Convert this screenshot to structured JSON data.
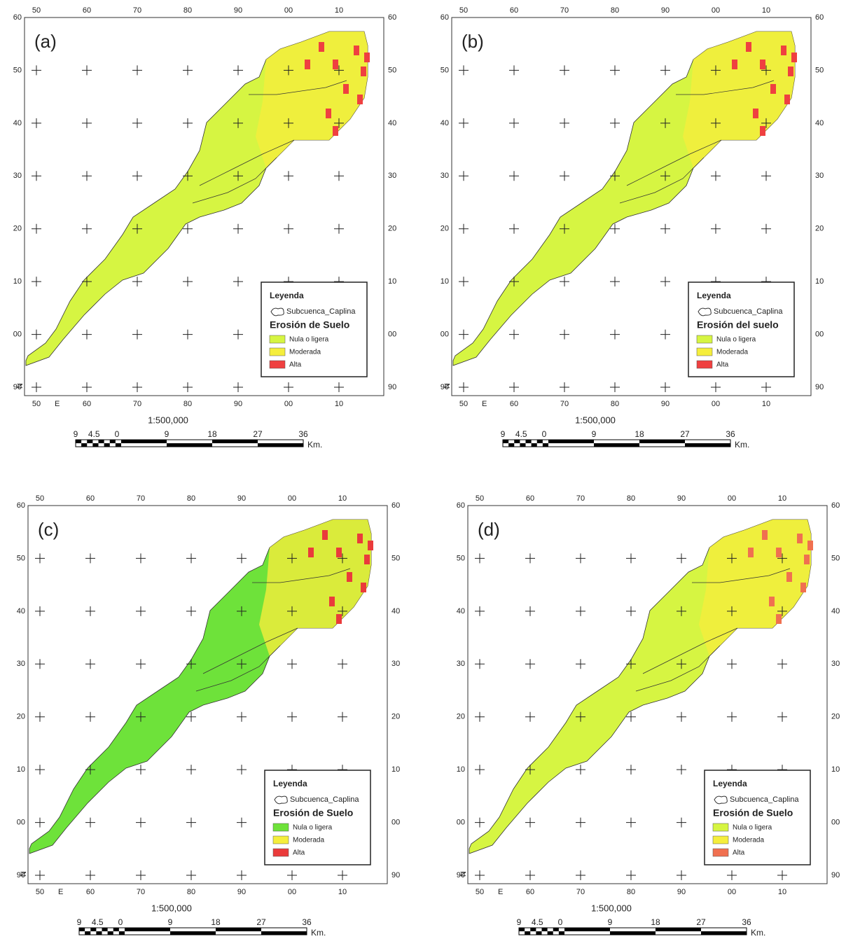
{
  "panels": [
    {
      "label": "(a)",
      "legend": {
        "title": "Leyenda",
        "boundary": "Subcuenca_Caplina",
        "heading": "Erosión de Suelo",
        "classes": [
          {
            "name": "Nula o ligera",
            "color": "#d6f542"
          },
          {
            "name": "Moderada",
            "color": "#f5ee3c"
          },
          {
            "name": "Alta",
            "color": "#ef4040"
          }
        ]
      }
    },
    {
      "label": "(b)",
      "legend": {
        "title": "Leyenda",
        "boundary": "Subcuenca_Caplina",
        "heading": "Erosión del suelo",
        "classes": [
          {
            "name": "Nula o ligera",
            "color": "#d6f542"
          },
          {
            "name": "Moderada",
            "color": "#f5ee3c"
          },
          {
            "name": "Alta",
            "color": "#ef4040"
          }
        ]
      }
    },
    {
      "label": "(c)",
      "legend": {
        "title": "Leyenda",
        "boundary": "Subcuenca_Caplina",
        "heading": "Erosión de Suelo",
        "classes": [
          {
            "name": "Nula o ligera",
            "color": "#6ee23a"
          },
          {
            "name": "Moderada",
            "color": "#f5ee3c"
          },
          {
            "name": "Alta",
            "color": "#ea3b3b"
          }
        ]
      }
    },
    {
      "label": "(d)",
      "legend": {
        "title": "Leyenda",
        "boundary": "Subcuenca_Caplina",
        "heading": "Erosión de Suelo",
        "classes": [
          {
            "name": "Nula o ligera",
            "color": "#d6f542"
          },
          {
            "name": "Moderada",
            "color": "#f5ee3c"
          },
          {
            "name": "Alta",
            "color": "#f07050"
          }
        ]
      }
    }
  ],
  "axes": {
    "top": [
      "50",
      "60",
      "70",
      "80",
      "90",
      "00",
      "10"
    ],
    "side": [
      "60",
      "50",
      "40",
      "30",
      "20",
      "10",
      "00",
      "90"
    ],
    "bottom": [
      "50",
      "60",
      "70",
      "80",
      "90",
      "00",
      "10"
    ],
    "easting": "E",
    "northing": "N"
  },
  "scale": {
    "ratio": "1:500,000",
    "labels": [
      "9",
      "4.5",
      "0",
      "9",
      "18",
      "27",
      "36"
    ],
    "unit": "Km."
  }
}
